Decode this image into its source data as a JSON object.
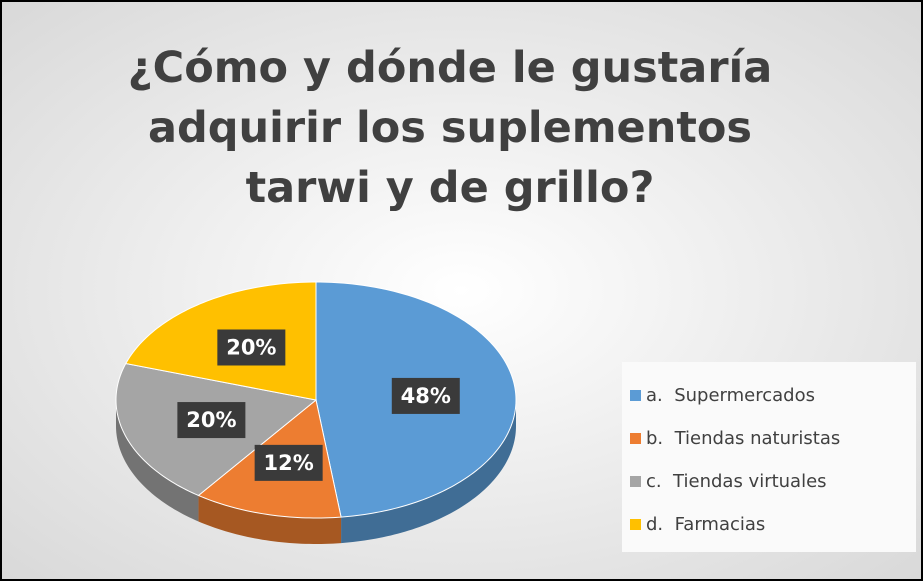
{
  "chart_data": {
    "type": "pie",
    "title": "¿Cómo y dónde le gustaría adquirir los suplementos tarwi y de grillo?",
    "categories": [
      "a.  Supermercados",
      "b.  Tiendas naturistas",
      "c.  Tiendas virtuales",
      "d.  Farmacias"
    ],
    "values": [
      48,
      12,
      20,
      20
    ],
    "value_labels": [
      "48%",
      "12%",
      "20%",
      "20%"
    ],
    "colors": [
      "#5b9bd5",
      "#ed7d31",
      "#a5a5a5",
      "#ffc000"
    ],
    "legend": "right"
  }
}
